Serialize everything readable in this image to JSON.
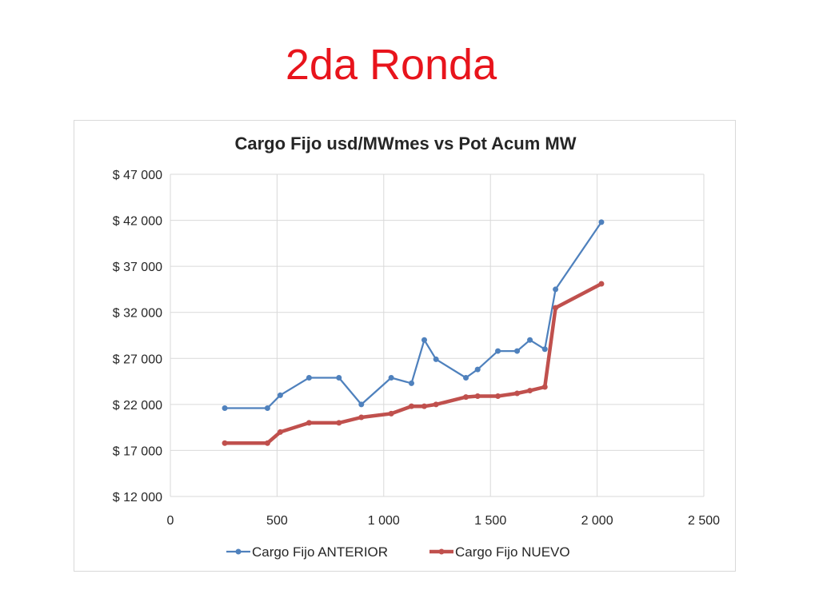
{
  "slide": {
    "title": "2da Ronda"
  },
  "chart_data": {
    "type": "line",
    "title": "Cargo Fijo usd/MWmes vs Pot Acum MW",
    "xlabel": "",
    "ylabel": "",
    "xlim": [
      0,
      2500
    ],
    "ylim": [
      12000,
      47000
    ],
    "x_ticks": [
      0,
      500,
      1000,
      1500,
      2000,
      2500
    ],
    "x_tick_labels": [
      "0",
      "500",
      "1 000",
      "1 500",
      "2 000",
      "2 500"
    ],
    "y_ticks": [
      12000,
      17000,
      22000,
      27000,
      32000,
      37000,
      42000,
      47000
    ],
    "y_tick_labels": [
      "$ 12 000",
      "$ 17 000",
      "$ 22 000",
      "$ 27 000",
      "$ 32 000",
      "$ 37 000",
      "$ 42 000",
      "$ 47 000"
    ],
    "grid": true,
    "legend_position": "bottom",
    "series": [
      {
        "name": "Cargo Fijo ANTERIOR",
        "color": "#4f81bd",
        "points": [
          [
            255,
            21600
          ],
          [
            455,
            21600
          ],
          [
            515,
            23000
          ],
          [
            650,
            24900
          ],
          [
            790,
            24900
          ],
          [
            895,
            22000
          ],
          [
            1035,
            24900
          ],
          [
            1130,
            24300
          ],
          [
            1190,
            29000
          ],
          [
            1245,
            26900
          ],
          [
            1385,
            24900
          ],
          [
            1440,
            25800
          ],
          [
            1535,
            27800
          ],
          [
            1625,
            27800
          ],
          [
            1685,
            29000
          ],
          [
            1755,
            28000
          ],
          [
            1805,
            34500
          ],
          [
            2020,
            41800
          ]
        ]
      },
      {
        "name": "Cargo Fijo NUEVO",
        "color": "#c0504d",
        "points": [
          [
            255,
            17800
          ],
          [
            455,
            17800
          ],
          [
            515,
            19000
          ],
          [
            650,
            20000
          ],
          [
            790,
            20000
          ],
          [
            895,
            20600
          ],
          [
            1035,
            21000
          ],
          [
            1130,
            21800
          ],
          [
            1190,
            21800
          ],
          [
            1245,
            22000
          ],
          [
            1385,
            22800
          ],
          [
            1440,
            22900
          ],
          [
            1535,
            22900
          ],
          [
            1625,
            23200
          ],
          [
            1685,
            23500
          ],
          [
            1755,
            23900
          ],
          [
            1805,
            32500
          ],
          [
            2020,
            35100
          ]
        ]
      }
    ]
  }
}
